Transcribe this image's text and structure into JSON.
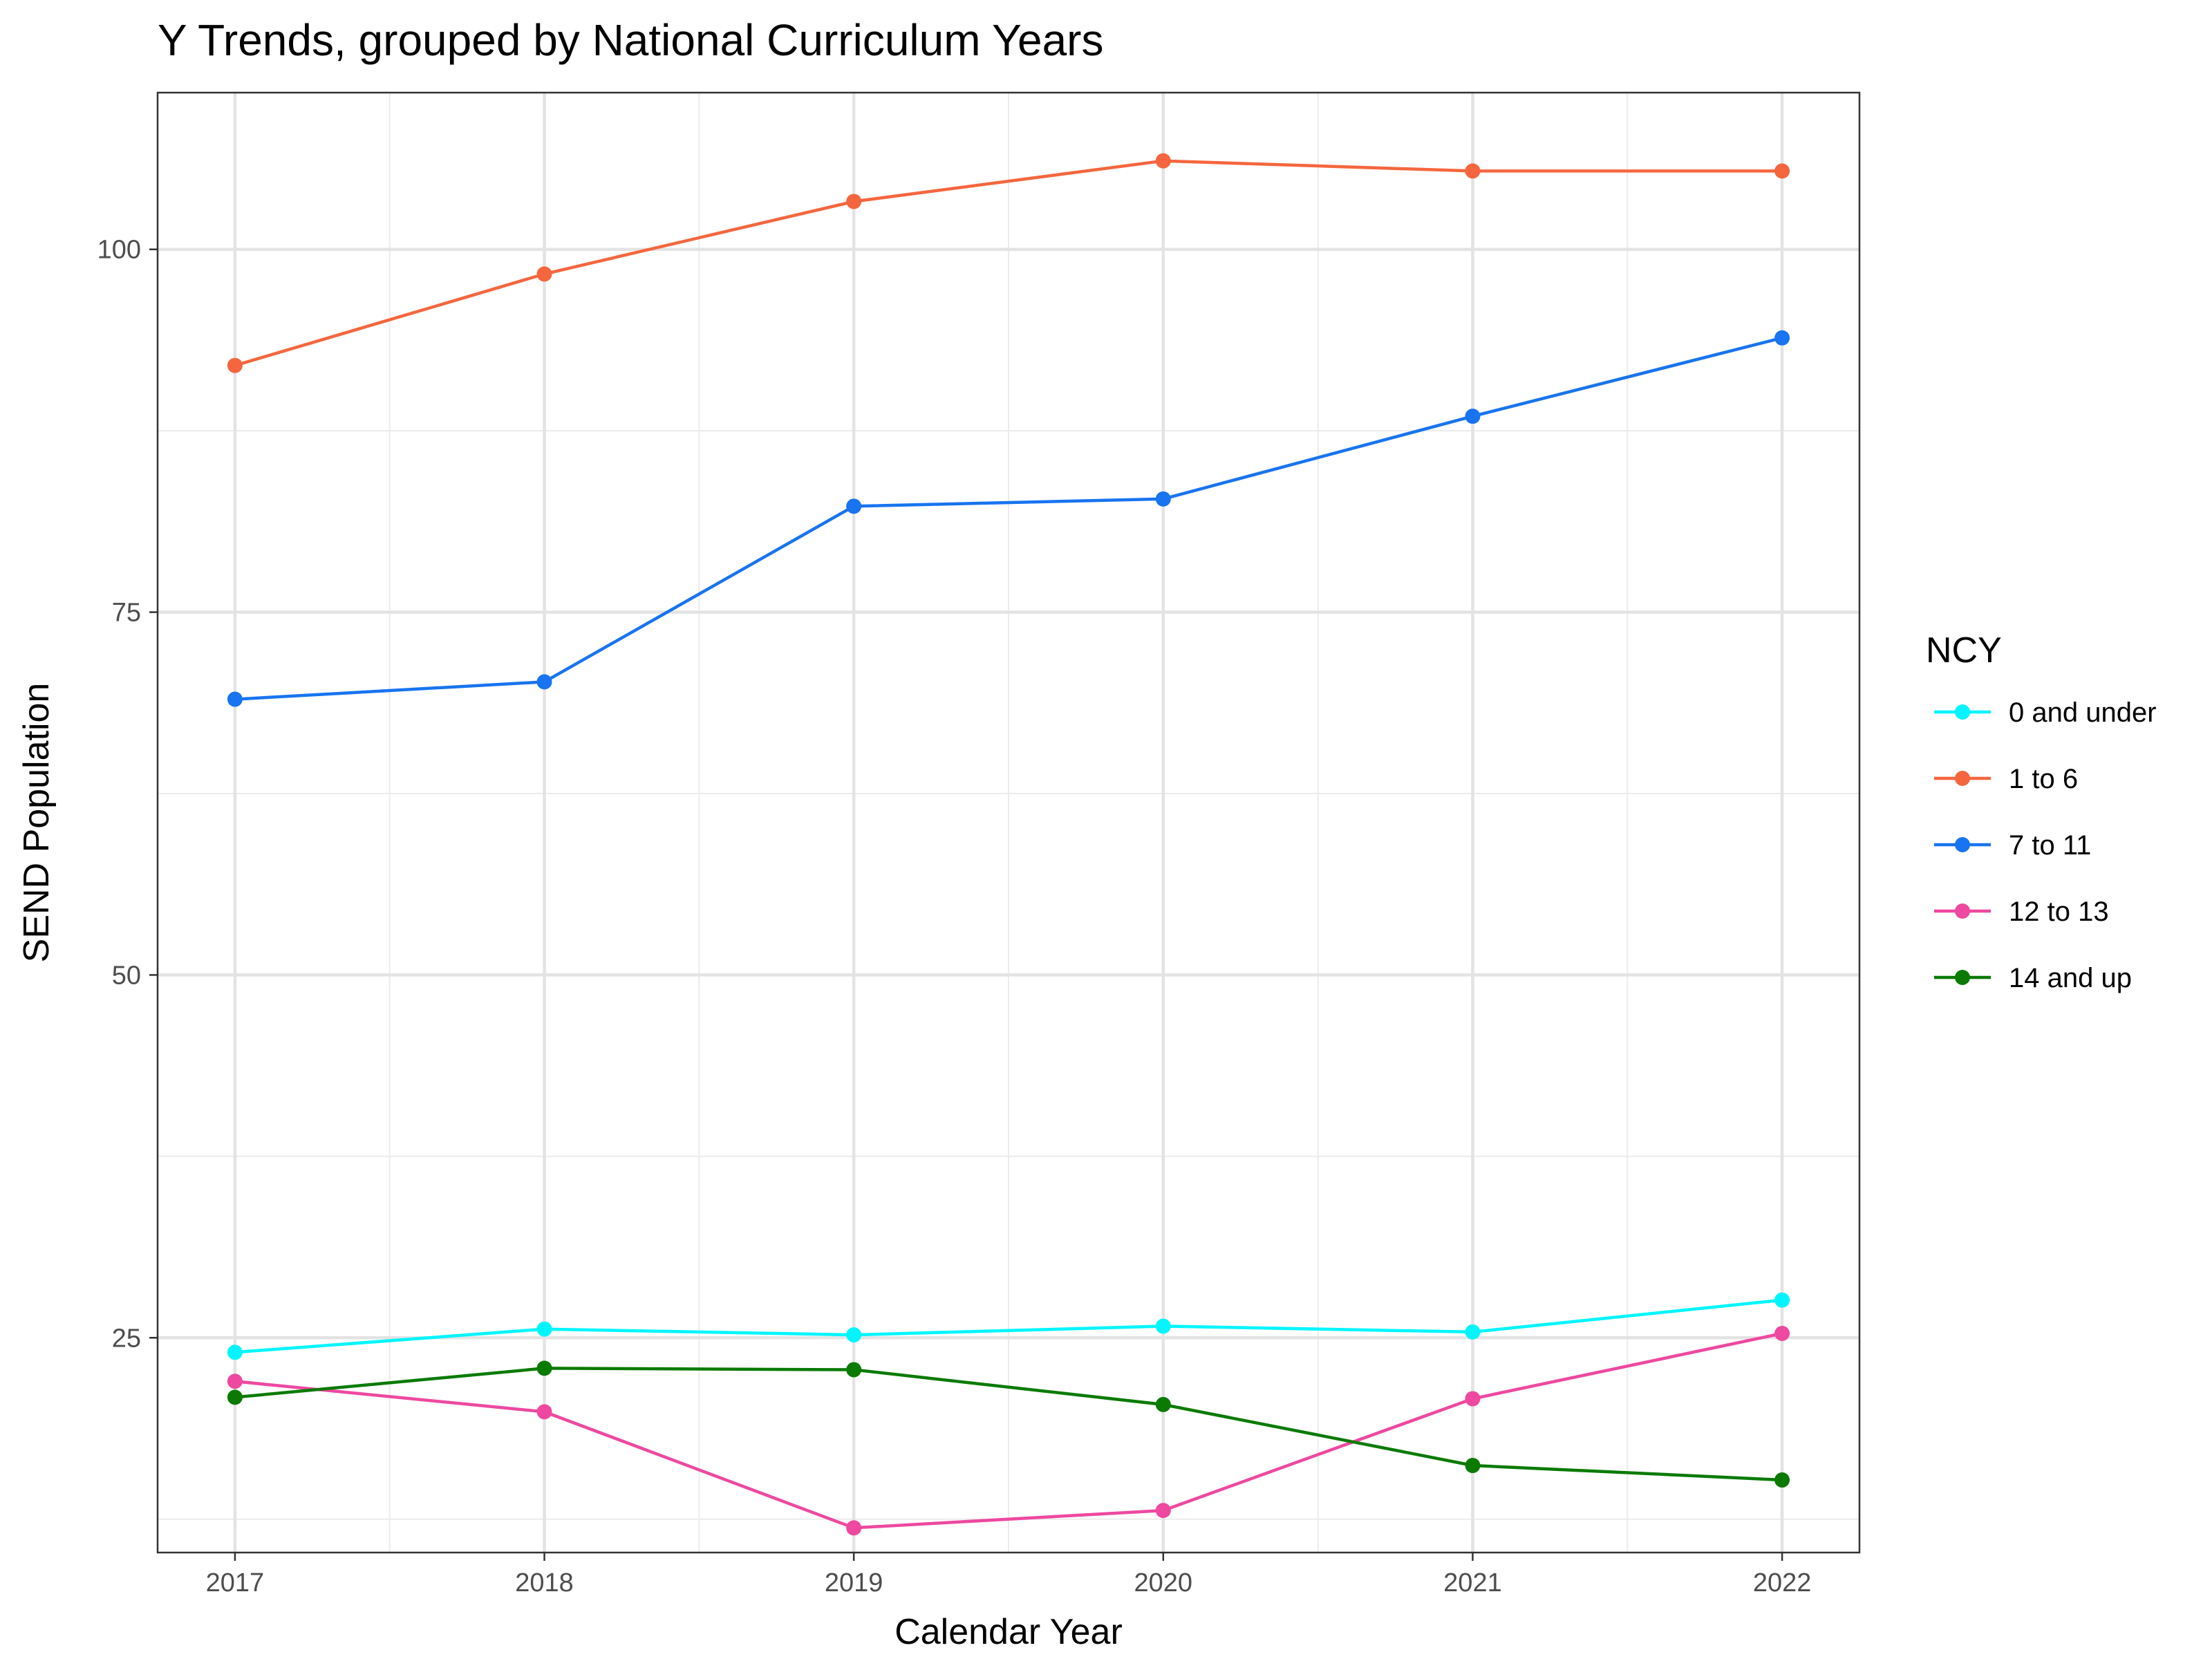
{
  "chart_data": {
    "type": "line",
    "title": "Y Trends, grouped by National Curriculum Years",
    "xlabel": "Calendar Year",
    "ylabel": "SEND Population",
    "x": [
      2017,
      2018,
      2019,
      2020,
      2021,
      2022
    ],
    "xlim": [
      2016.75,
      2022.25
    ],
    "ylim": [
      10.2,
      110.8
    ],
    "yticks": [
      25,
      50,
      75,
      100
    ],
    "grid": true,
    "legend": {
      "title": "NCY",
      "position": "right"
    },
    "series": [
      {
        "name": "0 and under",
        "color": "#00F5FF",
        "values": [
          24.0,
          25.6,
          25.2,
          25.8,
          25.4,
          27.6
        ]
      },
      {
        "name": "1 to 6",
        "color": "#F5663E",
        "values": [
          92.0,
          98.3,
          103.3,
          106.1,
          105.4,
          105.4
        ]
      },
      {
        "name": "7 to 11",
        "color": "#1874F0",
        "values": [
          69.0,
          70.2,
          82.3,
          82.8,
          88.5,
          93.9
        ]
      },
      {
        "name": "12 to 13",
        "color": "#EE48A0",
        "values": [
          22.0,
          19.9,
          11.9,
          13.1,
          20.8,
          25.3
        ]
      },
      {
        "name": "14 and up",
        "color": "#0A7A00",
        "values": [
          20.9,
          22.9,
          22.8,
          20.4,
          16.2,
          15.2
        ]
      }
    ]
  }
}
